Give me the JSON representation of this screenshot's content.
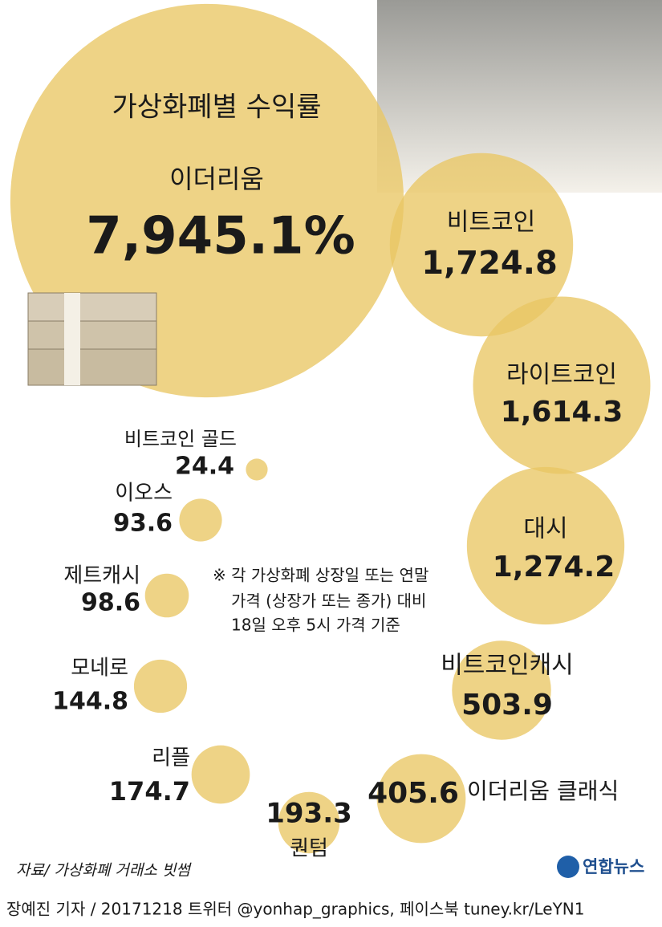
{
  "chart_data": {
    "type": "bubble",
    "title": "가상화폐별 수익률",
    "categories": [
      "이더리움",
      "비트코인",
      "라이트코인",
      "대시",
      "비트코인캐시",
      "이더리움 클래식",
      "퀀텀",
      "리플",
      "모네로",
      "제트캐시",
      "이오스",
      "비트코인 골드"
    ],
    "values": [
      7945.1,
      1724.8,
      1614.3,
      1274.2,
      503.9,
      405.6,
      193.3,
      174.7,
      144.8,
      98.6,
      93.6,
      24.4
    ],
    "value_labels": [
      "7,945.1%",
      "1,724.8",
      "1,614.3",
      "1,274.2",
      "503.9",
      "405.6",
      "193.3",
      "174.7",
      "144.8",
      "98.6",
      "93.6",
      "24.4"
    ],
    "color": "#e9c664",
    "note": [
      "※ 각 가상화폐 상장일 또는 연말",
      "가격 (상장가 또는 종가) 대비",
      "18일 오후 5시 가격 기준"
    ],
    "source": "자료/ 가상화폐 거래소 빗썸",
    "logo": "연합뉴스",
    "credit": "장예진 기자 / 20171218 트위터 @yonhap_graphics, 페이스북 tuney.kr/LeYN1"
  }
}
